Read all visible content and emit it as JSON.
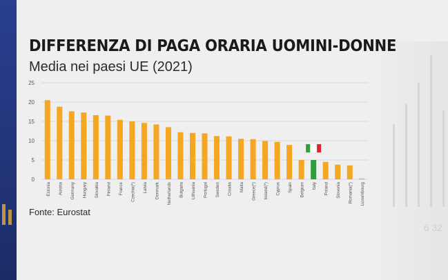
{
  "header": {
    "title": "DIFFERENZA DI PAGA ORARIA UOMINI-DONNE",
    "subtitle": "Media nei paesi UE (2021)"
  },
  "footer": {
    "source": "Fonte: Eurostat"
  },
  "colors": {
    "bar": "#f5a623",
    "italy_green": "#2e9e3b",
    "italy_red": "#d9252b",
    "grid": "#cfcfcf",
    "axis_text": "#555555"
  },
  "decor": {
    "bg_number": "6 32"
  },
  "chart_data": {
    "type": "bar",
    "categories": [
      "Estonia",
      "Austria",
      "Germany",
      "Hungary",
      "Slovakia",
      "Finland",
      "France",
      "Czechia(*)",
      "Latvia",
      "Denmark",
      "Netherlands",
      "Bulgaria",
      "Lithuania",
      "Portugal",
      "Sweden",
      "Croatia",
      "Malta",
      "Greece(*)",
      "Ireland(*)",
      "Cyprus",
      "Spain",
      "Belgium",
      "Italy",
      "Poland",
      "Slovenia",
      "Romania(*)",
      "Luxembourg"
    ],
    "values": [
      20.5,
      18.8,
      17.6,
      17.3,
      16.6,
      16.5,
      15.4,
      15.0,
      14.6,
      14.2,
      13.5,
      12.2,
      12.0,
      11.9,
      11.2,
      11.1,
      10.5,
      10.4,
      9.9,
      9.7,
      8.9,
      5.0,
      5.0,
      4.5,
      3.8,
      3.6,
      0.2
    ],
    "highlight": "Italy",
    "ylim": [
      0,
      25
    ],
    "yticks": [
      0,
      5,
      10,
      15,
      20,
      25
    ],
    "grid": true,
    "xlabel": "",
    "ylabel": ""
  }
}
